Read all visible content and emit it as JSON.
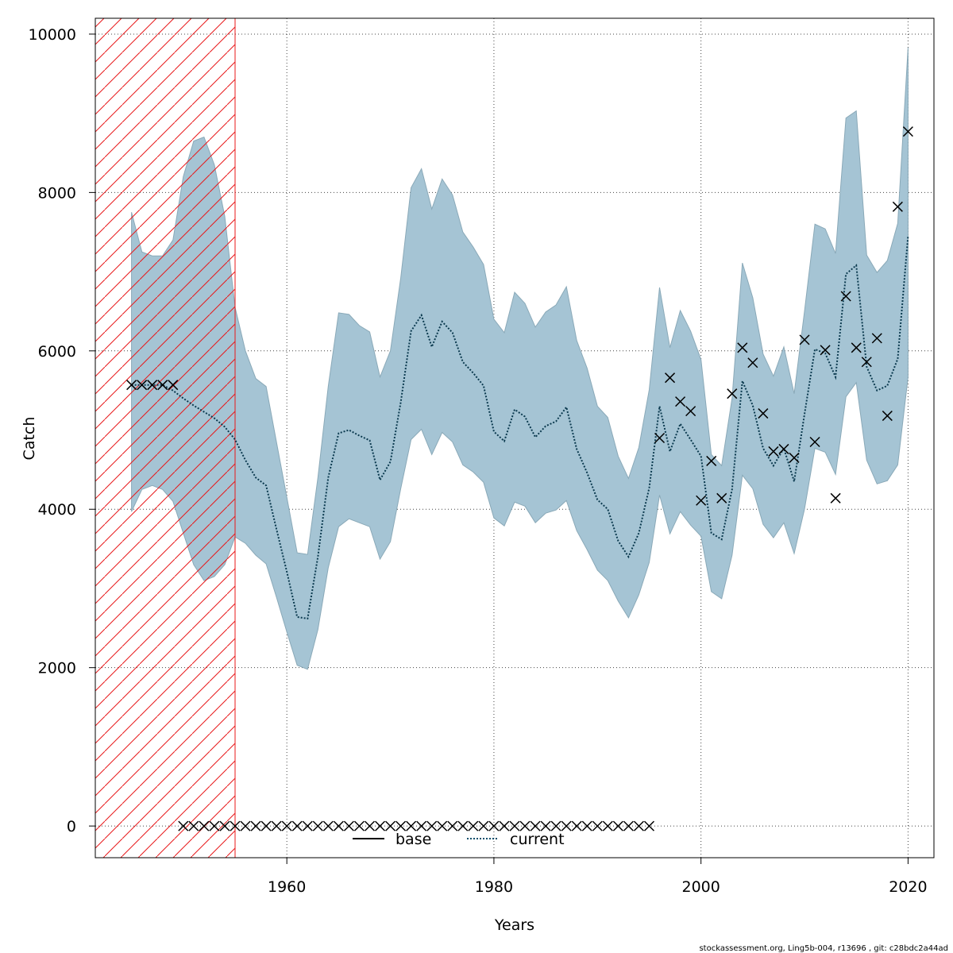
{
  "chart_data": {
    "type": "line",
    "xlabel": "Years",
    "ylabel": "Catch",
    "xlim": [
      1941.5,
      2022.5
    ],
    "ylim": [
      -400,
      10200
    ],
    "x_ticks": [
      1960,
      1980,
      2000,
      2020
    ],
    "y_ticks": [
      0,
      2000,
      4000,
      6000,
      8000,
      10000
    ],
    "x_tick_labels": [
      "1960",
      "1980",
      "2000",
      "2020"
    ],
    "y_tick_labels": [
      "0",
      "2000",
      "4000",
      "6000",
      "8000",
      "10000"
    ],
    "grid": true,
    "hatched_region": {
      "x_from": 1941.5,
      "x_to": 1955,
      "color": "#e8181a"
    },
    "band_color": "#a5c4d4",
    "legend": {
      "placement": "bottom-center",
      "entries": [
        {
          "label": "base",
          "style": "solid",
          "color": "#000000"
        },
        {
          "label": "current",
          "style": "dotted",
          "color": "#0b4f6c"
        }
      ]
    },
    "series": [
      {
        "name": "current",
        "x": [
          1945,
          1946,
          1947,
          1948,
          1949,
          1950,
          1951,
          1952,
          1953,
          1954,
          1955,
          1956,
          1957,
          1958,
          1959,
          1960,
          1961,
          1962,
          1963,
          1964,
          1965,
          1966,
          1967,
          1968,
          1969,
          1970,
          1971,
          1972,
          1973,
          1974,
          1975,
          1976,
          1977,
          1978,
          1979,
          1980,
          1981,
          1982,
          1983,
          1984,
          1985,
          1986,
          1987,
          1988,
          1989,
          1990,
          1991,
          1992,
          1993,
          1994,
          1995,
          1996,
          1997,
          1998,
          1999,
          2000,
          2001,
          2002,
          2003,
          2004,
          2005,
          2006,
          2007,
          2008,
          2009,
          2010,
          2011,
          2012,
          2013,
          2014,
          2015,
          2016,
          2017,
          2018,
          2019,
          2020
        ],
        "y": [
          5570,
          5570,
          5570,
          5570,
          5500,
          5400,
          5310,
          5230,
          5150,
          5040,
          4880,
          4620,
          4400,
          4300,
          3750,
          3210,
          2640,
          2620,
          3400,
          4400,
          4960,
          5000,
          4930,
          4870,
          4370,
          4600,
          5350,
          6250,
          6450,
          6050,
          6370,
          6230,
          5860,
          5720,
          5560,
          4980,
          4860,
          5260,
          5170,
          4910,
          5050,
          5110,
          5290,
          4760,
          4460,
          4120,
          4000,
          3600,
          3400,
          3700,
          4270,
          5300,
          4730,
          5080,
          4880,
          4670,
          3700,
          3620,
          4250,
          5620,
          5310,
          4770,
          4550,
          4770,
          4350,
          5200,
          6020,
          5970,
          5670,
          6970,
          7080,
          5800,
          5500,
          5560,
          5900,
          7450
        ]
      },
      {
        "name": "upper",
        "x": [
          1945,
          1946,
          1947,
          1948,
          1949,
          1950,
          1951,
          1952,
          1953,
          1954,
          1955,
          1956,
          1957,
          1958,
          1959,
          1960,
          1961,
          1962,
          1963,
          1964,
          1965,
          1966,
          1967,
          1968,
          1969,
          1970,
          1971,
          1972,
          1973,
          1974,
          1975,
          1976,
          1977,
          1978,
          1979,
          1980,
          1981,
          1982,
          1983,
          1984,
          1985,
          1986,
          1987,
          1988,
          1989,
          1990,
          1991,
          1992,
          1993,
          1994,
          1995,
          1996,
          1997,
          1998,
          1999,
          2000,
          2001,
          2002,
          2003,
          2004,
          2005,
          2006,
          2007,
          2008,
          2009,
          2010,
          2011,
          2012,
          2013,
          2014,
          2015,
          2016,
          2017,
          2018,
          2019,
          2020
        ],
        "y": [
          7750,
          7250,
          7200,
          7200,
          7400,
          8200,
          8650,
          8700,
          8350,
          7700,
          6550,
          6000,
          5650,
          5550,
          4850,
          4150,
          3450,
          3430,
          4400,
          5550,
          6480,
          6460,
          6320,
          6240,
          5670,
          6000,
          6920,
          8060,
          8300,
          7790,
          8170,
          7970,
          7500,
          7310,
          7090,
          6400,
          6230,
          6740,
          6600,
          6300,
          6490,
          6580,
          6810,
          6130,
          5780,
          5300,
          5160,
          4670,
          4390,
          4780,
          5510,
          6800,
          6040,
          6510,
          6250,
          5890,
          4690,
          4550,
          5400,
          7110,
          6670,
          5960,
          5680,
          6050,
          5460,
          6500,
          7600,
          7540,
          7230,
          8940,
          9030,
          7210,
          6990,
          7140,
          7610,
          9830
        ]
      },
      {
        "name": "lower",
        "x": [
          1945,
          1946,
          1947,
          1948,
          1949,
          1950,
          1951,
          1952,
          1953,
          1954,
          1955,
          1956,
          1957,
          1958,
          1959,
          1960,
          1961,
          1962,
          1963,
          1964,
          1965,
          1966,
          1967,
          1968,
          1969,
          1970,
          1971,
          1972,
          1973,
          1974,
          1975,
          1976,
          1977,
          1978,
          1979,
          1980,
          1981,
          1982,
          1983,
          1984,
          1985,
          1986,
          1987,
          1988,
          1989,
          1990,
          1991,
          1992,
          1993,
          1994,
          1995,
          1996,
          1997,
          1998,
          1999,
          2000,
          2001,
          2002,
          2003,
          2004,
          2005,
          2006,
          2007,
          2008,
          2009,
          2010,
          2011,
          2012,
          2013,
          2014,
          2015,
          2016,
          2017,
          2018,
          2019,
          2020
        ],
        "y": [
          3970,
          4250,
          4300,
          4250,
          4100,
          3700,
          3300,
          3100,
          3150,
          3300,
          3650,
          3570,
          3420,
          3310,
          2890,
          2450,
          2030,
          1980,
          2480,
          3260,
          3780,
          3880,
          3830,
          3780,
          3370,
          3590,
          4260,
          4880,
          5010,
          4690,
          4970,
          4850,
          4560,
          4470,
          4340,
          3890,
          3790,
          4090,
          4040,
          3830,
          3950,
          3990,
          4110,
          3730,
          3490,
          3230,
          3100,
          2840,
          2630,
          2920,
          3330,
          4180,
          3690,
          3970,
          3800,
          3660,
          2960,
          2870,
          3420,
          4430,
          4260,
          3810,
          3640,
          3830,
          3440,
          4000,
          4770,
          4720,
          4440,
          5420,
          5600,
          4620,
          4320,
          4360,
          4560,
          5670
        ]
      },
      {
        "name": "base",
        "x": [
          1950,
          1951,
          1952,
          1953,
          1954,
          1955,
          1956,
          1957,
          1958,
          1959,
          1960,
          1961,
          1962,
          1963,
          1964,
          1965,
          1966,
          1967,
          1968,
          1969,
          1970,
          1971,
          1972,
          1973,
          1974,
          1975,
          1976,
          1977,
          1978,
          1979,
          1980,
          1981,
          1982,
          1983,
          1984,
          1985,
          1986,
          1987,
          1988,
          1989,
          1990,
          1991,
          1992,
          1993,
          1994,
          1995
        ],
        "y": [
          0,
          0,
          0,
          0,
          0,
          0,
          0,
          0,
          0,
          0,
          0,
          0,
          0,
          0,
          0,
          0,
          0,
          0,
          0,
          0,
          0,
          0,
          0,
          0,
          0,
          0,
          0,
          0,
          0,
          0,
          0,
          0,
          0,
          0,
          0,
          0,
          0,
          0,
          0,
          0,
          0,
          0,
          0,
          0,
          0,
          0
        ]
      },
      {
        "name": "observed",
        "x": [
          1945,
          1946,
          1947,
          1948,
          1949,
          1996,
          1997,
          1998,
          1999,
          2000,
          2001,
          2002,
          2003,
          2004,
          2005,
          2006,
          2007,
          2008,
          2009,
          2010,
          2011,
          2012,
          2013,
          2014,
          2015,
          2016,
          2017,
          2018,
          2019,
          2020
        ],
        "y": [
          5570,
          5570,
          5570,
          5570,
          5570,
          4900,
          5660,
          5360,
          5240,
          4110,
          4610,
          4140,
          5460,
          6040,
          5850,
          5210,
          4730,
          4760,
          4650,
          6140,
          4850,
          6010,
          4140,
          6690,
          6040,
          5860,
          6160,
          5180,
          7820,
          8770
        ]
      }
    ]
  },
  "footer": "stockassessment.org, Ling5b-004, r13696 , git: c28bdc2a44ad"
}
